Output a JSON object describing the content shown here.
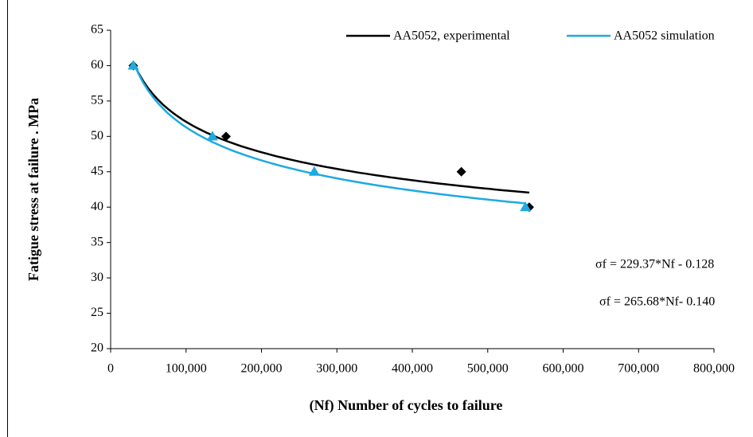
{
  "chart_data": {
    "type": "scatter",
    "xlabel": "(Nf) Number of cycles to failure",
    "ylabel": "Fatigue  stress  at failure . MPa",
    "annotations": [
      "σf = 229.37*Nf - 0.128",
      "σf = 265.68*Nf- 0.140"
    ],
    "trendline": "power",
    "series": [
      {
        "name": "AA5052, experimental",
        "color": "#000000",
        "marker": "diamond",
        "x": [
          30000,
          153000,
          465000,
          555000
        ],
        "values": [
          60,
          50,
          45,
          40
        ]
      },
      {
        "name": "AA5052 simulation",
        "color": "#1ea9e1",
        "marker": "triangle",
        "x": [
          30000,
          135000,
          270000,
          550000
        ],
        "values": [
          60,
          50,
          45,
          40
        ]
      }
    ],
    "xlim": [
      0,
      800000
    ],
    "xticks": [
      0,
      {
        "value": 100000,
        "label": "100,000"
      },
      {
        "value": 200000,
        "label": "200,000"
      },
      {
        "value": 300000,
        "label": "300,000"
      },
      {
        "value": 400000,
        "label": "400,000"
      },
      {
        "value": 500000,
        "label": "500,000"
      },
      {
        "value": 600000,
        "label": "600,000"
      },
      {
        "value": 700000,
        "label": "700,000"
      },
      {
        "value": 800000,
        "label": "800,000"
      }
    ],
    "ylim": [
      20,
      65
    ],
    "yticks": [
      20,
      25,
      30,
      35,
      40,
      45,
      50,
      55,
      60,
      65
    ]
  }
}
